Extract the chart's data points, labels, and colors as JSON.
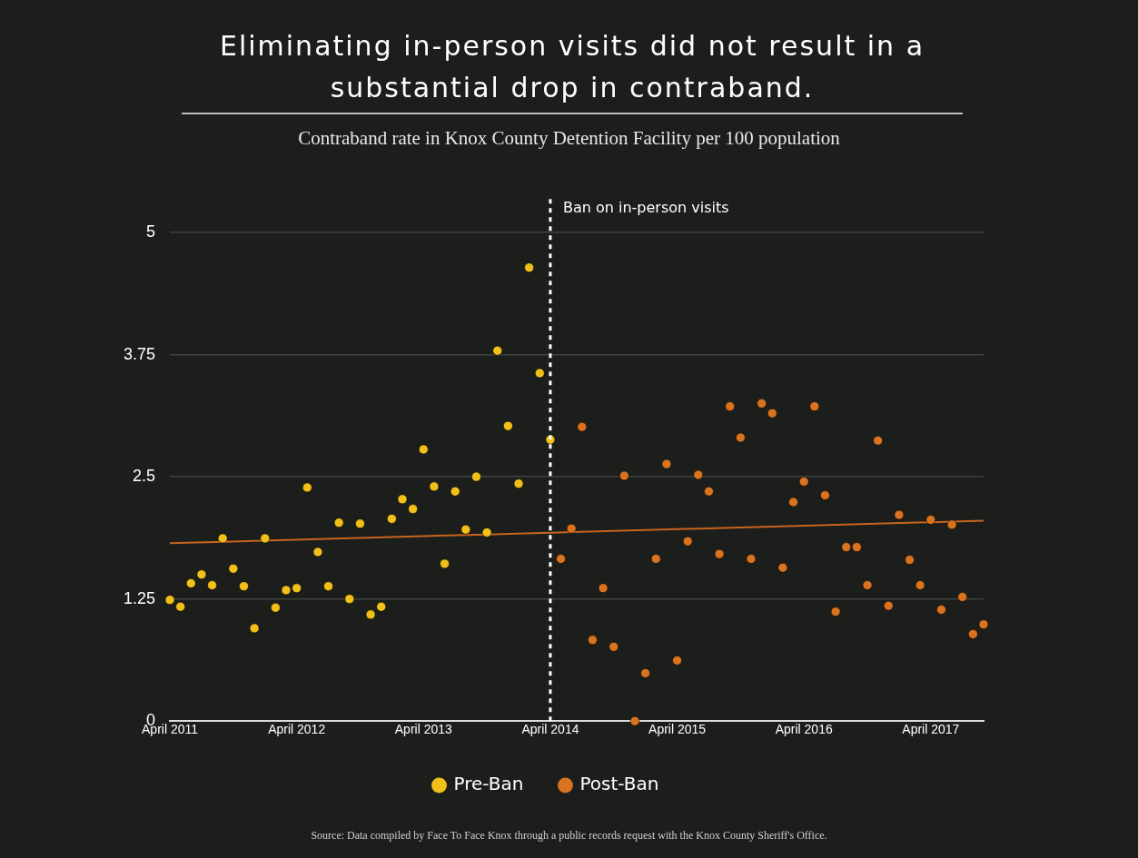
{
  "chart_data": {
    "type": "scatter",
    "title": "Eliminating in-person visits did not result in a substantial drop in contraband.",
    "subtitle": "Contraband rate in Knox County Detention Facility per 100 population",
    "series": [
      {
        "name": "Pre-Ban",
        "color": "#f2c01a",
        "x": [
          "2011-04",
          "2011-05",
          "2011-06",
          "2011-07",
          "2011-08",
          "2011-09",
          "2011-10",
          "2011-11",
          "2011-12",
          "2012-01",
          "2012-02",
          "2012-03",
          "2012-04",
          "2012-05",
          "2012-06",
          "2012-07",
          "2012-08",
          "2012-09",
          "2012-10",
          "2012-11",
          "2012-12",
          "2013-01",
          "2013-02",
          "2013-03",
          "2013-04",
          "2013-05",
          "2013-06",
          "2013-07",
          "2013-08",
          "2013-09",
          "2013-10",
          "2013-11",
          "2013-12",
          "2014-01",
          "2014-02",
          "2014-03",
          "2014-04"
        ],
        "values": [
          1.24,
          1.17,
          1.41,
          1.5,
          1.39,
          1.87,
          1.56,
          1.38,
          0.95,
          1.87,
          1.16,
          1.34,
          1.36,
          2.39,
          1.73,
          1.38,
          2.03,
          1.25,
          2.02,
          1.09,
          1.17,
          2.07,
          2.27,
          2.17,
          2.78,
          2.4,
          1.61,
          2.35,
          1.96,
          2.5,
          1.93,
          3.79,
          3.02,
          2.43,
          4.64,
          3.56,
          2.88
        ]
      },
      {
        "name": "Post-Ban",
        "color": "#d9731f",
        "x": [
          "2014-05",
          "2014-06",
          "2014-07",
          "2014-08",
          "2014-09",
          "2014-10",
          "2014-11",
          "2014-12",
          "2015-01",
          "2015-02",
          "2015-03",
          "2015-04",
          "2015-05",
          "2015-06",
          "2015-07",
          "2015-08",
          "2015-09",
          "2015-10",
          "2015-11",
          "2015-12",
          "2016-01",
          "2016-02",
          "2016-03",
          "2016-04",
          "2016-05",
          "2016-06",
          "2016-07",
          "2016-08",
          "2016-09",
          "2016-10",
          "2016-11",
          "2016-12",
          "2017-01",
          "2017-02",
          "2017-03",
          "2017-04",
          "2017-05",
          "2017-06",
          "2017-07",
          "2017-08",
          "2017-09"
        ],
        "values": [
          1.66,
          1.97,
          3.01,
          0.83,
          1.36,
          0.76,
          2.51,
          0,
          0.49,
          1.66,
          2.63,
          0.62,
          1.84,
          2.52,
          2.35,
          1.71,
          3.22,
          2.9,
          1.66,
          3.25,
          3.15,
          1.57,
          2.24,
          2.45,
          3.22,
          2.31,
          1.12,
          1.78,
          1.78,
          1.39,
          2.87,
          1.18,
          2.11,
          1.65,
          1.39,
          2.06,
          1.14,
          2.01,
          1.27,
          0.89,
          0.99
        ]
      },
      {
        "type": "line",
        "marker": "none",
        "color": "#c8641e",
        "x": [
          "2011-04",
          "2017-09"
        ],
        "values": [
          1.82,
          2.05
        ]
      }
    ],
    "xlim": [
      "2011-04",
      "2017-09"
    ],
    "xticks": [
      {
        "value": "2011-04",
        "label": "April 2011"
      },
      {
        "value": "2012-04",
        "label": "April 2012"
      },
      {
        "value": "2013-04",
        "label": "April 2013"
      },
      {
        "value": "2014-04",
        "label": "April 2014"
      },
      {
        "value": "2015-04",
        "label": "April 2015"
      },
      {
        "value": "2016-04",
        "label": "April 2016"
      },
      {
        "value": "2017-04",
        "label": "April 2017"
      }
    ],
    "ylim": [
      0,
      5
    ],
    "yticks": [
      0,
      1.25,
      2.5,
      3.75,
      5
    ],
    "grid": "y",
    "legend": "bottom",
    "marker": "circle",
    "ref_lines": [
      {
        "axis": "x",
        "value": "2014-04",
        "label": "Ban on in-person visits",
        "color": "#ffffff",
        "line_style": "dashed"
      }
    ],
    "annotations": [
      "Source: Data compiled by Face To Face Knox through a public records request with the Knox County Sheriff's Office."
    ]
  }
}
